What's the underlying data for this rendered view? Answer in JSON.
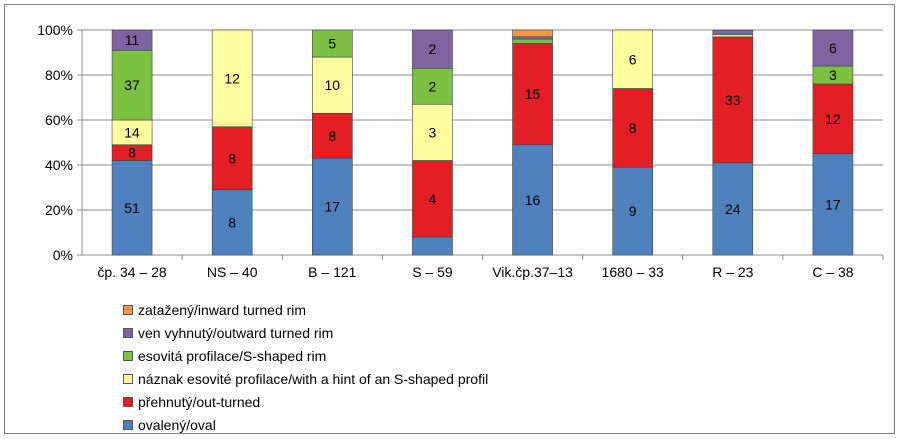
{
  "chart_data": {
    "type": "bar",
    "stacked": true,
    "normalized": true,
    "categories": [
      "čp. 34 – 28",
      "NS – 40",
      "B – 121",
      "S – 59",
      "Vik.čp.37–13",
      "1680 – 33",
      "R – 23",
      "C – 38"
    ],
    "yticks": [
      "0%",
      "20%",
      "40%",
      "60%",
      "80%",
      "100%"
    ],
    "ylim": [
      0,
      100
    ],
    "grid": true,
    "legend_position": "bottom-left",
    "series": [
      {
        "name": "ovalený/oval",
        "color": "#4f81bd",
        "values": [
          42,
          29,
          43,
          8,
          49,
          39,
          41,
          45
        ],
        "labels": [
          "51",
          "8",
          "17",
          "",
          "16",
          "9",
          "24",
          "17"
        ]
      },
      {
        "name": "přehnutý/out-turned",
        "color": "#e31e24",
        "values": [
          7,
          28,
          20,
          34,
          45,
          35,
          56,
          31
        ],
        "labels": [
          "8",
          "8",
          "8",
          "4",
          "15",
          "8",
          "33",
          "12"
        ]
      },
      {
        "name": "náznak esovité profilace/with a hint of an S-shaped profil",
        "color": "#ffffa0",
        "values": [
          11,
          43,
          25,
          25,
          0,
          26,
          1,
          0
        ],
        "labels": [
          "14",
          "12",
          "10",
          "3",
          "",
          "6",
          "",
          ""
        ]
      },
      {
        "name": "esovitá profilace/S-shaped rim",
        "color": "#7cc142",
        "values": [
          31,
          0,
          12,
          16,
          2,
          0,
          0,
          8
        ],
        "labels": [
          "37",
          "",
          "5",
          "2",
          "",
          "",
          "",
          "3"
        ]
      },
      {
        "name": "ven vyhnutý/outward turned rim",
        "color": "#8064a2",
        "values": [
          9,
          0,
          0,
          17,
          1,
          0,
          2,
          16
        ],
        "labels": [
          "11",
          "",
          "",
          "2",
          "",
          "",
          "",
          "6"
        ]
      },
      {
        "name": "zatažený/inward turned rim",
        "color": "#f79646",
        "values": [
          0,
          0,
          0,
          0,
          3,
          0,
          0,
          0
        ],
        "labels": [
          "",
          "",
          "",
          "",
          "",
          "",
          "",
          ""
        ]
      }
    ]
  }
}
